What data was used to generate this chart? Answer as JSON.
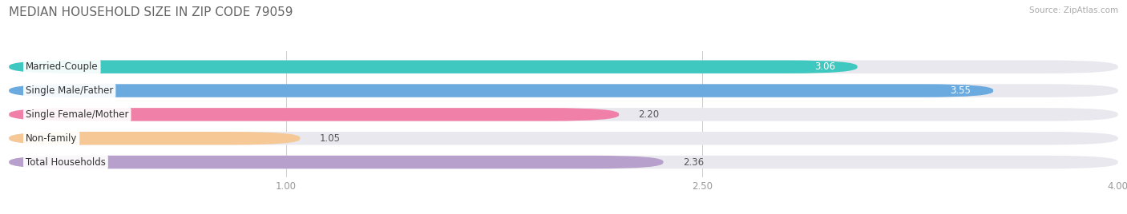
{
  "title": "MEDIAN HOUSEHOLD SIZE IN ZIP CODE 79059",
  "source": "Source: ZipAtlas.com",
  "categories": [
    "Married-Couple",
    "Single Male/Father",
    "Single Female/Mother",
    "Non-family",
    "Total Households"
  ],
  "values": [
    3.06,
    3.55,
    2.2,
    1.05,
    2.36
  ],
  "bar_colors": [
    "#3ec8c0",
    "#6aaadf",
    "#f080a8",
    "#f5c896",
    "#b8a0cc"
  ],
  "xlim": [
    0,
    4.0
  ],
  "xticks": [
    1.0,
    2.5,
    4.0
  ],
  "xtick_labels": [
    "1.00",
    "2.50",
    "4.00"
  ],
  "title_fontsize": 11,
  "label_fontsize": 8.5,
  "value_fontsize": 8.5,
  "background_color": "#ffffff",
  "bar_bg_color": "#e8e8ee",
  "bar_height": 0.55,
  "value_inside_threshold": 2.5,
  "value_inside_color": "#ffffff",
  "value_outside_color": "#555555",
  "label_bg_color": "#ffffff"
}
